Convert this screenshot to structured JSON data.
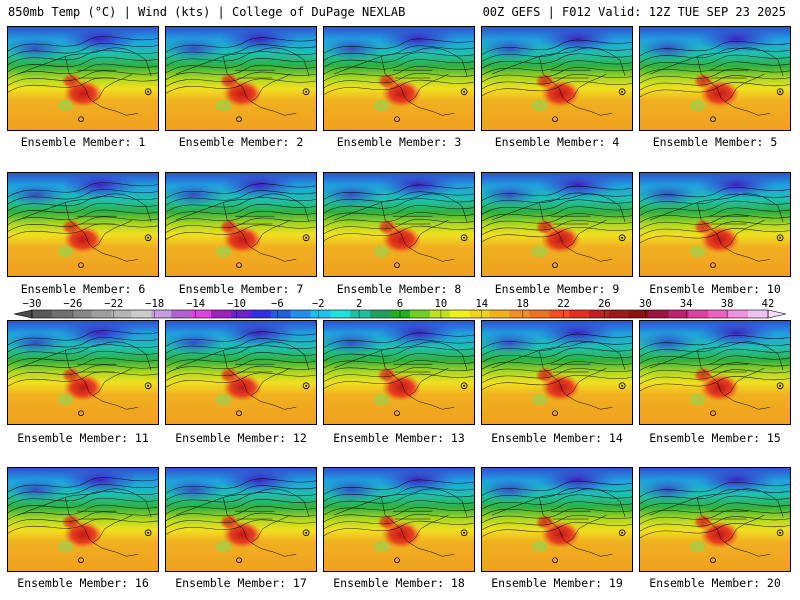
{
  "header": {
    "left": "850mb Temp (°C) | Wind (kts) | College of DuPage NEXLAB",
    "right": "00Z GEFS | F012 Valid: 12Z TUE SEP 23 2025"
  },
  "panels": [
    {
      "label": "Ensemble Member: 1"
    },
    {
      "label": "Ensemble Member: 2"
    },
    {
      "label": "Ensemble Member: 3"
    },
    {
      "label": "Ensemble Member: 4"
    },
    {
      "label": "Ensemble Member: 5"
    },
    {
      "label": "Ensemble Member: 6"
    },
    {
      "label": "Ensemble Member: 7"
    },
    {
      "label": "Ensemble Member: 8"
    },
    {
      "label": "Ensemble Member: 9"
    },
    {
      "label": "Ensemble Member: 10"
    },
    {
      "label": "Ensemble Member: 11"
    },
    {
      "label": "Ensemble Member: 12"
    },
    {
      "label": "Ensemble Member: 13"
    },
    {
      "label": "Ensemble Member: 14"
    },
    {
      "label": "Ensemble Member: 15"
    },
    {
      "label": "Ensemble Member: 16"
    },
    {
      "label": "Ensemble Member: 17"
    },
    {
      "label": "Ensemble Member: 18"
    },
    {
      "label": "Ensemble Member: 19"
    },
    {
      "label": "Ensemble Member: 20"
    }
  ],
  "colorbar": {
    "tick_labels": [
      "−30",
      "−26",
      "−22",
      "−18",
      "−14",
      "−10",
      "−6",
      "−2",
      "2",
      "6",
      "10",
      "14",
      "18",
      "22",
      "26",
      "30",
      "34",
      "38",
      "42"
    ],
    "colors": [
      "#5a5a5a",
      "#707070",
      "#878787",
      "#9e9e9e",
      "#b5b5b5",
      "#cccccc",
      "#c89be0",
      "#b060d0",
      "#e040e0",
      "#a020c0",
      "#6a20d0",
      "#3030e0",
      "#2060e0",
      "#2090f0",
      "#20c0f0",
      "#20e0e0",
      "#20c0a0",
      "#20a060",
      "#20b020",
      "#70d020",
      "#c0e020",
      "#f0f020",
      "#f0d020",
      "#f0b020",
      "#f09020",
      "#f07020",
      "#f05020",
      "#e03020",
      "#c02020",
      "#a01818",
      "#901010",
      "#a01040",
      "#c02070",
      "#e040a0",
      "#f060c0",
      "#f090e0",
      "#f0c0f0"
    ]
  }
}
